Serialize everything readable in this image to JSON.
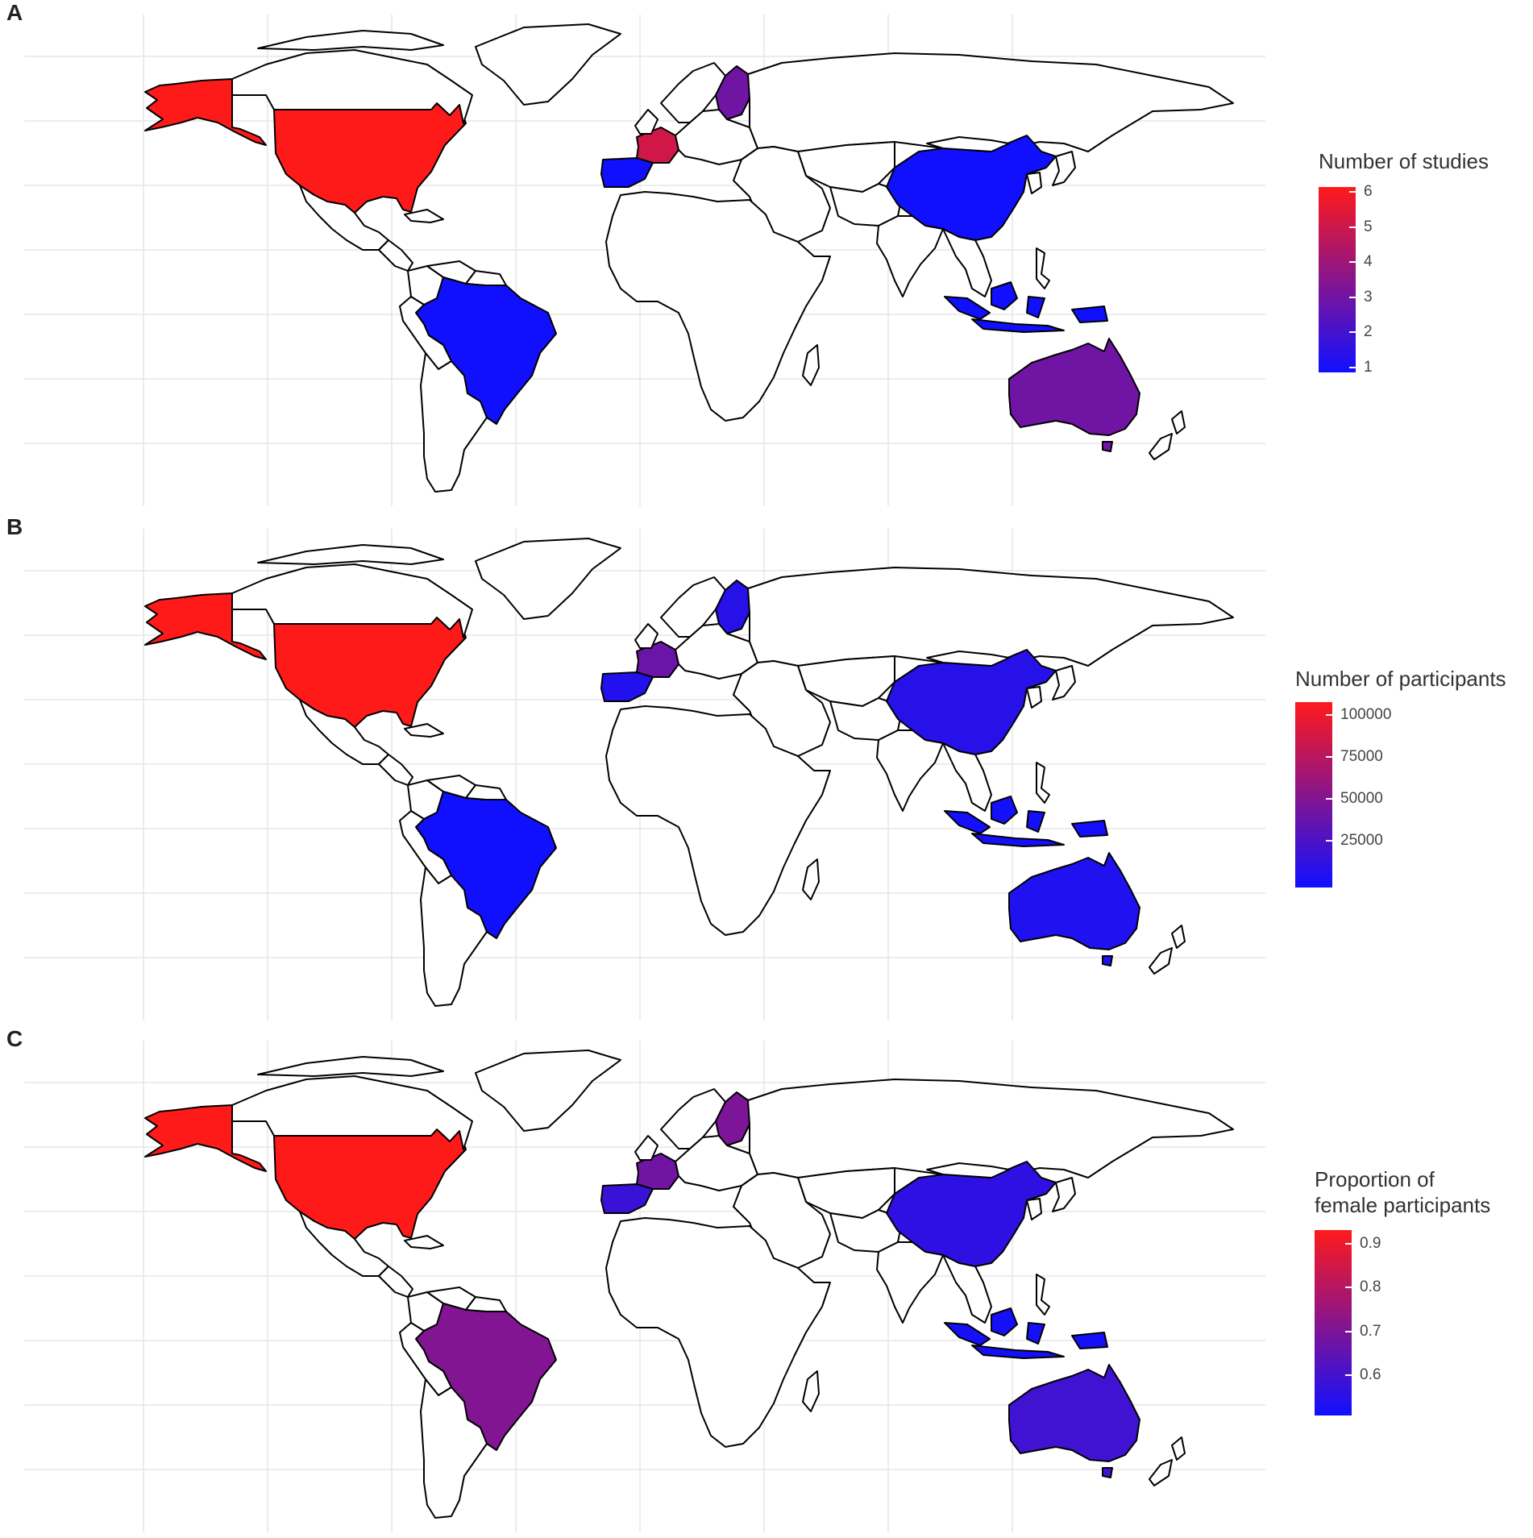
{
  "colors": {
    "low": "#1010ff",
    "high": "#ff1a1a",
    "land": "#ffffff",
    "border": "#000000",
    "grid": "#e6e6e6"
  },
  "panels": [
    {
      "letter": "A",
      "legend": {
        "title_lines": [
          "Number of studies"
        ],
        "min": 1,
        "max": 6,
        "ticks": [
          "6",
          "5",
          "4",
          "3",
          "2",
          "1"
        ]
      },
      "countries": {
        "usa": 6,
        "brazil": 1,
        "france": 5,
        "spain": 1,
        "finland": 3,
        "china": 1,
        "indonesia": 1,
        "australia": 3
      }
    },
    {
      "letter": "B",
      "legend": {
        "title_lines": [
          "Number of participants"
        ],
        "min": 0,
        "max": 105000,
        "ticks": [
          "100000",
          "75000",
          "50000",
          "25000"
        ]
      },
      "countries": {
        "usa": 105000,
        "brazil": 500,
        "france": 40000,
        "spain": 8000,
        "finland": 10000,
        "china": 10000,
        "indonesia": 2000,
        "australia": 7000
      }
    },
    {
      "letter": "C",
      "legend": {
        "title_lines": [
          "Proportion of",
          "female participants"
        ],
        "min": 0.52,
        "max": 0.92,
        "ticks": [
          "0.9",
          "0.8",
          "0.7",
          "0.6"
        ]
      },
      "countries": {
        "usa": 0.92,
        "brazil": 0.71,
        "france": 0.68,
        "spain": 0.59,
        "finland": 0.7,
        "china": 0.57,
        "indonesia": 0.53,
        "australia": 0.6
      }
    }
  ]
}
